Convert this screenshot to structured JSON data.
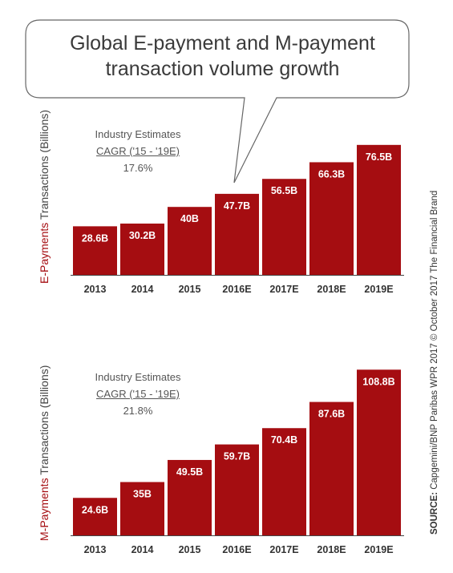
{
  "title_lines": [
    "Global E-payment and M-payment",
    "transaction volume growth"
  ],
  "colors": {
    "bar": "#a50d11",
    "baseline": "#444444",
    "bubble_border": "#666666",
    "bubble_fill": "#ffffff"
  },
  "source": {
    "prefix": "SOURCE:",
    "text": " Capgemini/BNP Paribas WPR 2017 © October 2017 The Financial Brand"
  },
  "chart_data": [
    {
      "type": "bar",
      "categories": [
        "2013",
        "2014",
        "2015",
        "2016E",
        "2017E",
        "2018E",
        "2019E"
      ],
      "values": [
        28.6,
        30.2,
        40,
        47.7,
        56.5,
        66.3,
        76.5
      ],
      "data_labels": [
        "28.6B",
        "30.2B",
        "40B",
        "47.7B",
        "56.5B",
        "66.3B",
        "76.5B"
      ],
      "ylabel_accent": "E-Payments",
      "ylabel_rest": " Transactions (Billions)",
      "note": {
        "line1": "Industry Estimates",
        "line2": "CAGR ('15 - '19E)",
        "line3": "17.6%"
      }
    },
    {
      "type": "bar",
      "categories": [
        "2013",
        "2014",
        "2015",
        "2016E",
        "2017E",
        "2018E",
        "2019E"
      ],
      "values": [
        24.6,
        35,
        49.5,
        59.7,
        70.4,
        87.6,
        108.8
      ],
      "data_labels": [
        "24.6B",
        "35B",
        "49.5B",
        "59.7B",
        "70.4B",
        "87.6B",
        "108.8B"
      ],
      "ylabel_accent": "M-Payments",
      "ylabel_rest": " Transactions (Billions)",
      "note": {
        "line1": "Industry Estimates",
        "line2": "CAGR ('15 - '19E)",
        "line3": "21.8%"
      }
    }
  ]
}
